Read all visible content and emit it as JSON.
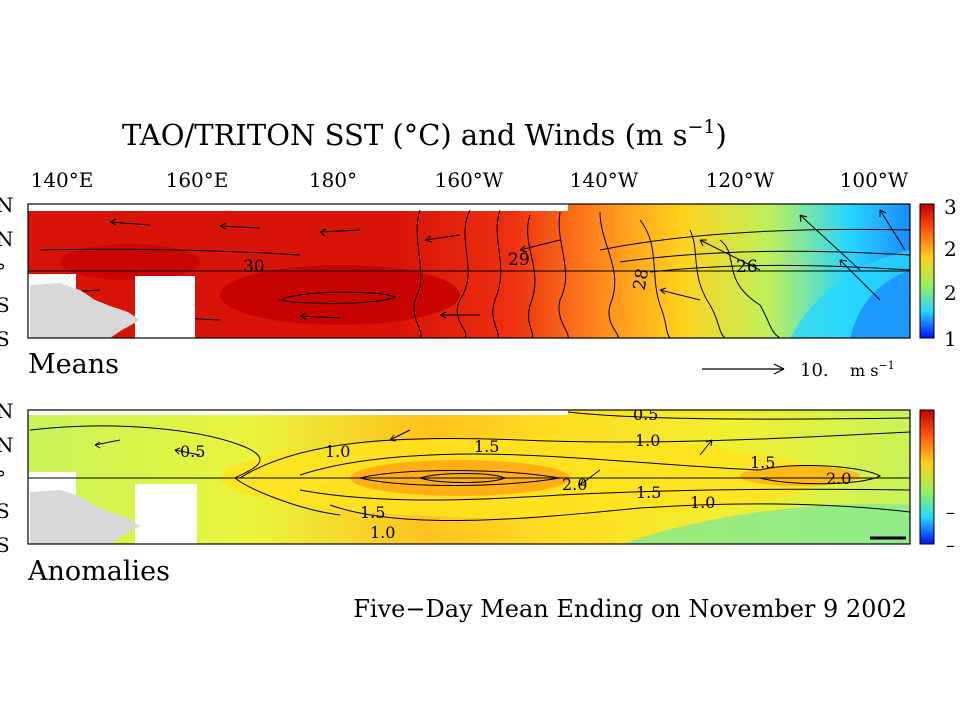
{
  "title_main": "TAO/TRITON SST (°C) and Winds (m s",
  "title_exp": "−1",
  "title_close": ")",
  "footer": "Five−Day Mean Ending on November 9 2002",
  "lon_ticks": [
    "140°E",
    "160°E",
    "180°",
    "160°W",
    "140°W",
    "120°W",
    "100°W"
  ],
  "lat_ticks": [
    "N",
    "N",
    "°",
    "S",
    "S"
  ],
  "colors": {
    "warm_dark": "#c40000",
    "warm": "#e21e10",
    "orange": "#ff8a1e",
    "yellow": "#ffd21e",
    "green": "#bff05a",
    "cyan": "#28d7ff",
    "blue": "#0028ff",
    "land": "#d8d8d8"
  },
  "chart_data": [
    {
      "type": "heatmap",
      "label": "Means",
      "variable": "SST (°C) and Winds",
      "x_range": [
        "140°E",
        "100°W"
      ],
      "y_range": [
        "S",
        "N"
      ],
      "contour_labels": [
        "30",
        "29",
        "28",
        "26"
      ],
      "colorbar_ticks": [
        "3",
        "2",
        "2",
        "1"
      ],
      "wind_reference": {
        "value": "10.",
        "unit": "m s",
        "unit_exp": "−1"
      }
    },
    {
      "type": "heatmap",
      "label": "Anomalies",
      "variable": "SST anomaly (°C)",
      "x_range": [
        "140°E",
        "100°W"
      ],
      "y_range": [
        "S",
        "N"
      ],
      "contour_labels": [
        "0.5",
        "0.5",
        "1.0",
        "1.5",
        "1.0",
        "1.5",
        "2.0",
        "1.5",
        "1.0",
        "1.0",
        "2.0"
      ],
      "colorbar_ticks": [
        "–",
        "–"
      ]
    }
  ]
}
